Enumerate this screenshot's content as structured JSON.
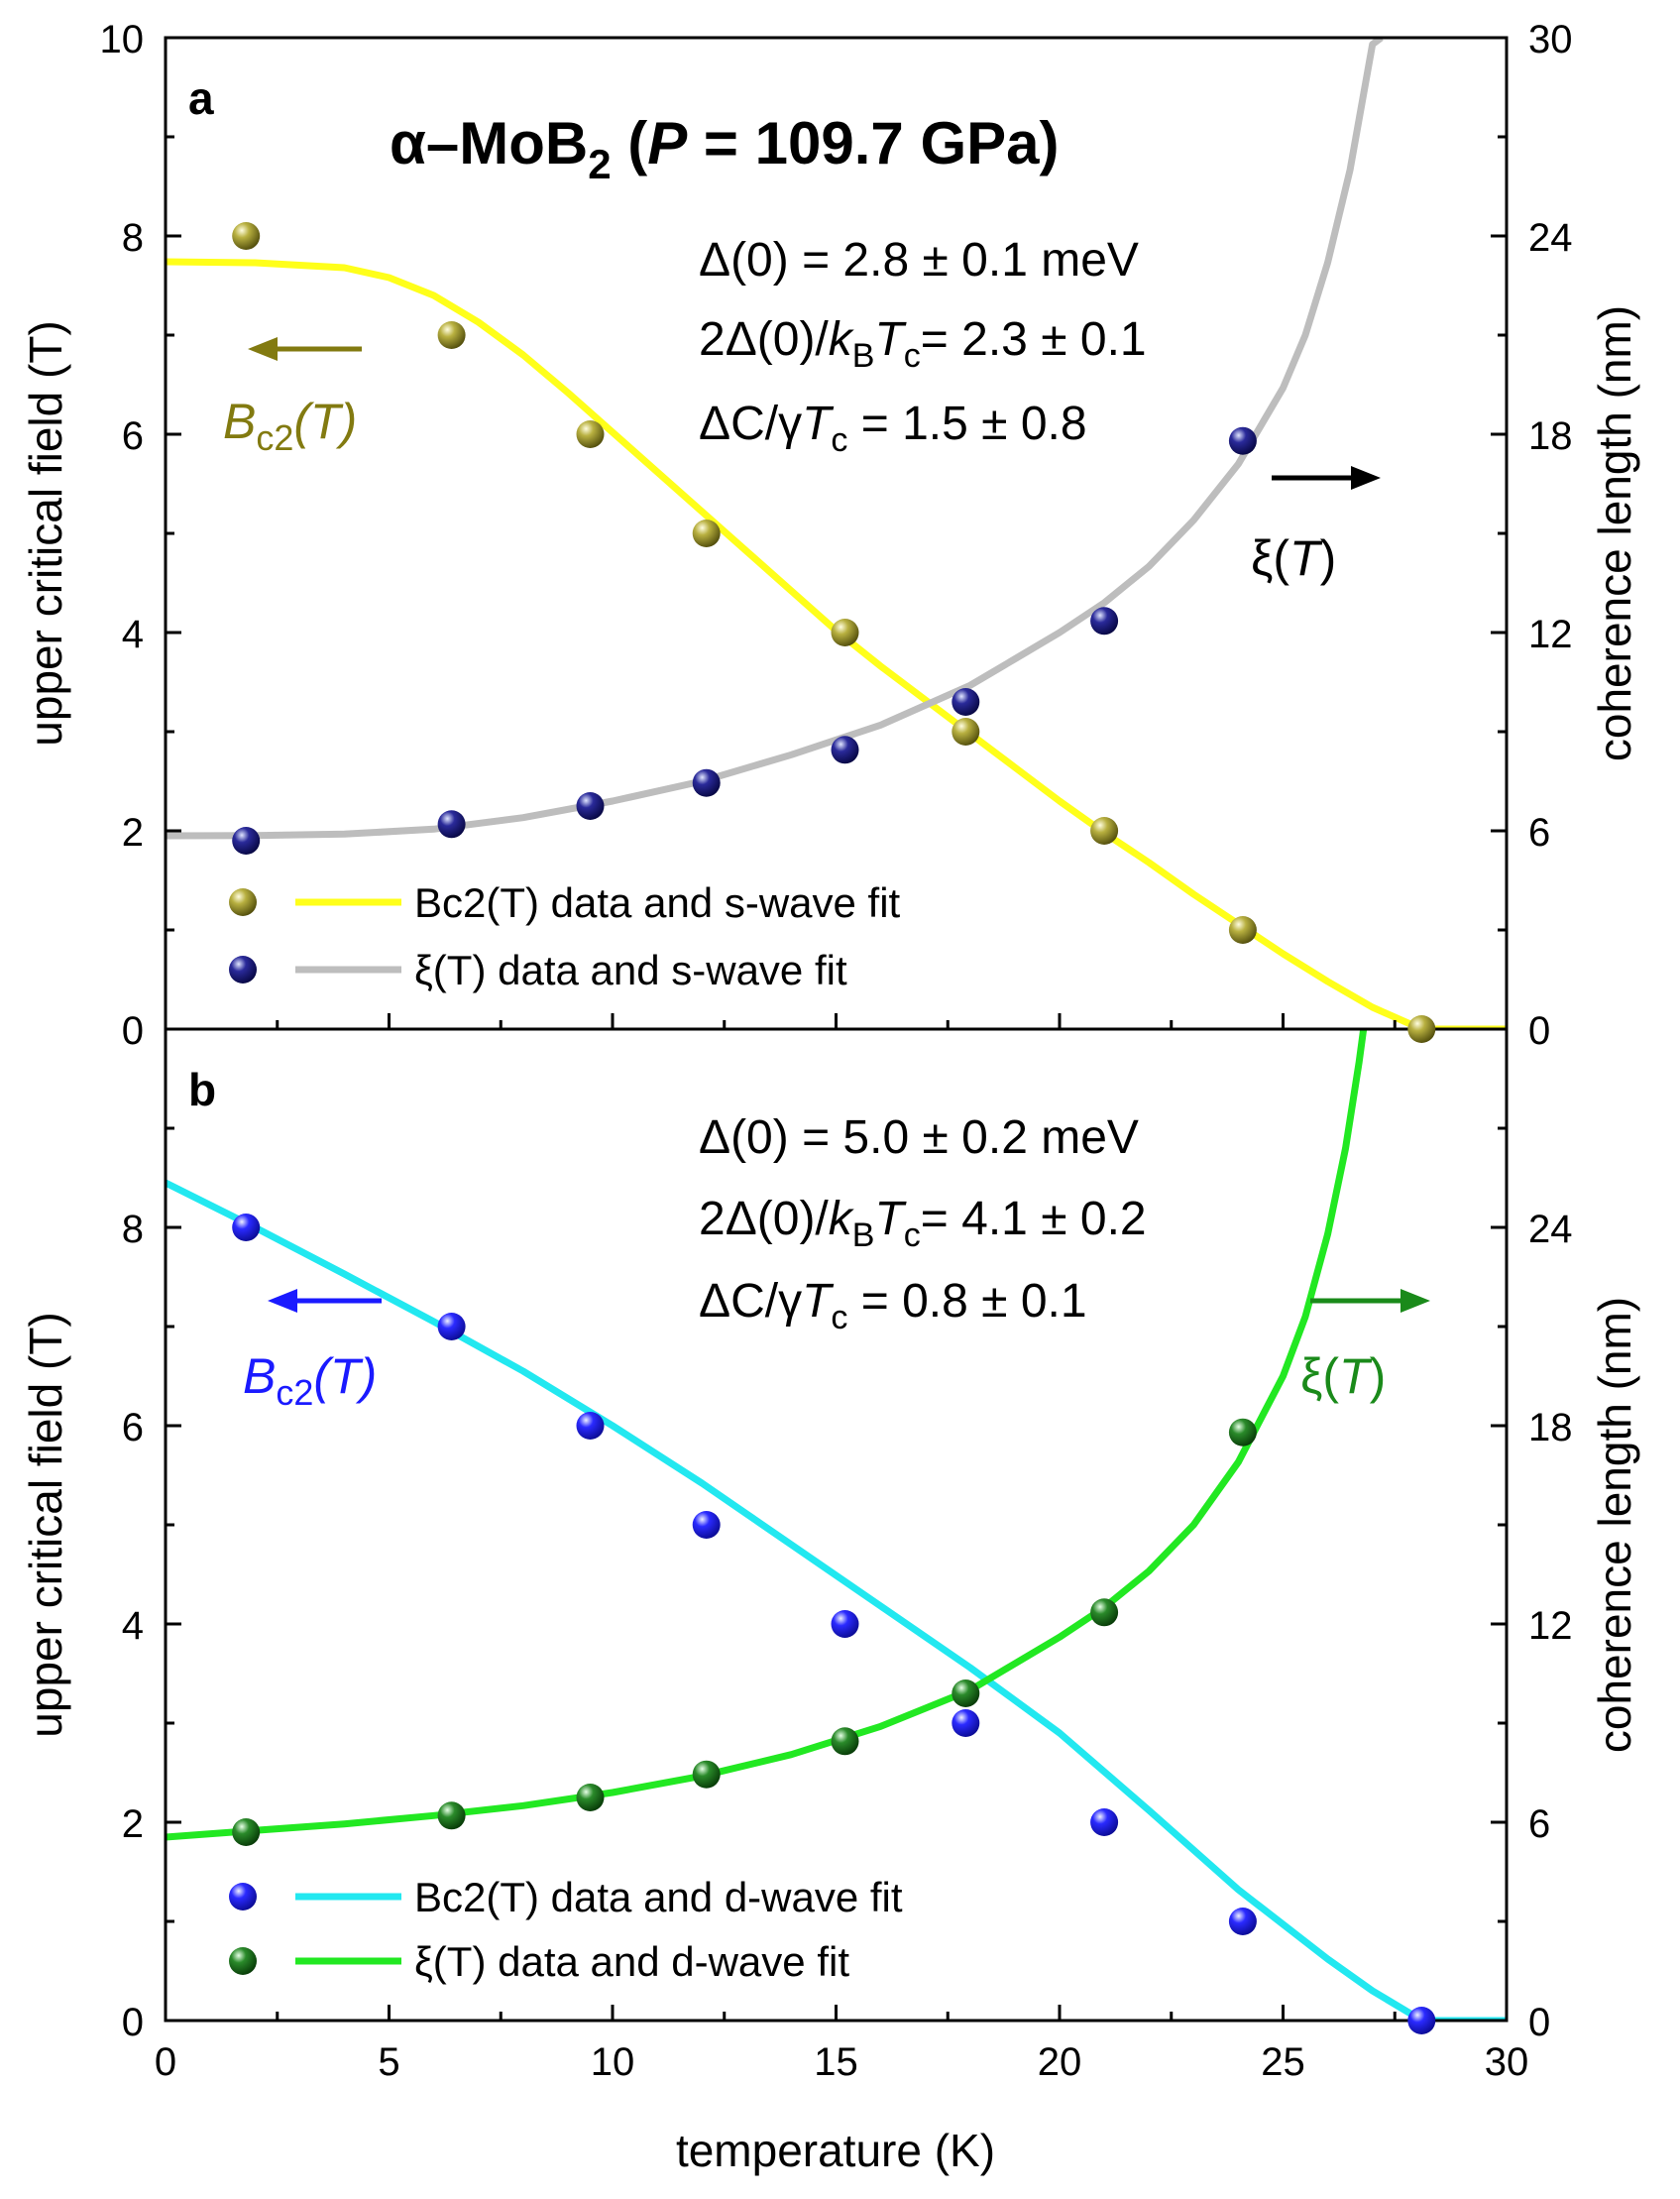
{
  "chart_data": [
    {
      "type": "scatter",
      "panel_label": "a",
      "title_parts": {
        "symbol": "α–MoB",
        "subscript": "2",
        "open": " (",
        "p": "P",
        "value": " = 109.7 GPa)"
      },
      "xlabel": "temperature (K)",
      "ylabel_left": "upper critical field (T)",
      "ylabel_right": "coherence length (nm)",
      "xlim": [
        0,
        30
      ],
      "ylim_left": [
        0,
        10
      ],
      "ylim_right": [
        0,
        30
      ],
      "yticks_left": [
        "0",
        "2",
        "4",
        "6",
        "8",
        "10"
      ],
      "yticks_right": [
        "0",
        "6",
        "12",
        "18",
        "24",
        "30"
      ],
      "annotations": {
        "gap": "Δ(0) = 2.8 ± 0.1 meV",
        "ratio_prefix": "2Δ(0)/",
        "ratio_suffix": "= 2.3 ± 0.1",
        "dc_prefix": "ΔC/γ",
        "dc_suffix": " = 1.5 ± 0.8",
        "bc2_arrow_label": "Bc2(T)",
        "xi_arrow_label": "ξ(T)"
      },
      "legend": [
        "Bc2(T) data and s-wave fit",
        "ξ(T) data and s-wave fit"
      ],
      "series": [
        {
          "name": "Bc2 data",
          "axis": "left",
          "color": "#8a8420",
          "x": [
            1.8,
            6.4,
            9.5,
            12.1,
            15.2,
            17.9,
            21.0,
            24.1,
            28.1
          ],
          "y": [
            8.0,
            7.0,
            6.0,
            5.0,
            4.0,
            3.0,
            2.0,
            1.0,
            0.0
          ]
        },
        {
          "name": "Bc2 s-wave fit",
          "axis": "left",
          "color": "#ffff1a",
          "x": [
            0,
            2,
            4,
            5,
            6,
            7,
            8,
            9,
            10,
            11,
            12,
            13,
            14,
            15,
            16,
            17,
            18,
            19,
            20,
            21,
            22,
            23,
            24,
            25,
            26,
            27,
            28,
            28.1,
            30
          ],
          "y": [
            7.74,
            7.73,
            7.68,
            7.58,
            7.4,
            7.13,
            6.8,
            6.42,
            6.02,
            5.62,
            5.22,
            4.82,
            4.42,
            4.02,
            3.66,
            3.32,
            2.98,
            2.64,
            2.3,
            1.98,
            1.68,
            1.36,
            1.06,
            0.76,
            0.48,
            0.22,
            0.02,
            0.0,
            0.0
          ]
        },
        {
          "name": "xi data",
          "axis": "right",
          "color": "#1a1a7a",
          "x": [
            1.8,
            6.4,
            9.5,
            12.1,
            15.2,
            17.9,
            21.0,
            24.1
          ],
          "y": [
            5.7,
            6.2,
            6.75,
            7.45,
            8.45,
            9.9,
            12.35,
            17.8
          ]
        },
        {
          "name": "xi s-wave fit",
          "axis": "right",
          "color": "#bdbdbd",
          "x": [
            0,
            2,
            4,
            6,
            8,
            10,
            12,
            14,
            16,
            18,
            19,
            20,
            21,
            22,
            23,
            24,
            25,
            25.5,
            26,
            26.5,
            27.0,
            27.2
          ],
          "y": [
            5.85,
            5.86,
            5.9,
            6.05,
            6.4,
            6.9,
            7.5,
            8.3,
            9.2,
            10.4,
            11.2,
            12.0,
            12.9,
            14.0,
            15.4,
            17.1,
            19.4,
            21.0,
            23.2,
            26.0,
            29.8,
            30.0
          ]
        }
      ]
    },
    {
      "type": "scatter",
      "panel_label": "b",
      "xlabel": "temperature (K)",
      "ylabel_left": "upper critical field (T)",
      "ylabel_right": "coherence length (nm)",
      "xlim": [
        0,
        30
      ],
      "xticks": [
        "0",
        "5",
        "10",
        "15",
        "20",
        "25",
        "30"
      ],
      "ylim_left": [
        0,
        10
      ],
      "ylim_right": [
        0,
        30
      ],
      "yticks_left": [
        "0",
        "2",
        "4",
        "6",
        "8"
      ],
      "yticks_right": [
        "0",
        "6",
        "12",
        "18",
        "24"
      ],
      "annotations": {
        "gap": "Δ(0) = 5.0 ± 0.2 meV",
        "ratio_prefix": "2Δ(0)/",
        "ratio_suffix": "= 4.1 ± 0.2",
        "dc_prefix": "ΔC/γ",
        "dc_suffix": " = 0.8 ± 0.1",
        "bc2_arrow_label": "Bc2(T)",
        "xi_arrow_label": "ξ(T)"
      },
      "legend": [
        "Bc2(T) data and d-wave fit",
        "ξ(T) data and d-wave fit"
      ],
      "series": [
        {
          "name": "Bc2 data",
          "axis": "left",
          "color": "#1a1aff",
          "x": [
            1.8,
            6.4,
            9.5,
            12.1,
            15.2,
            17.9,
            21.0,
            24.1,
            28.1
          ],
          "y": [
            8.0,
            7.0,
            6.0,
            5.0,
            4.0,
            3.0,
            2.0,
            1.0,
            0.0
          ]
        },
        {
          "name": "Bc2 d-wave fit",
          "axis": "left",
          "color": "#22e8f0",
          "x": [
            0,
            2,
            4,
            6,
            8,
            10,
            12,
            14,
            16,
            18,
            20,
            22,
            24,
            26,
            27,
            28,
            28.1,
            30
          ],
          "y": [
            8.45,
            8.0,
            7.53,
            7.05,
            6.55,
            6.0,
            5.42,
            4.8,
            4.18,
            3.56,
            2.9,
            2.12,
            1.32,
            0.62,
            0.3,
            0.03,
            0.0,
            0.0
          ]
        },
        {
          "name": "xi data",
          "axis": "right",
          "color": "#1a6e1a",
          "x": [
            1.8,
            6.4,
            9.5,
            12.1,
            15.2,
            17.9,
            21.0,
            24.1
          ],
          "y": [
            5.7,
            6.2,
            6.75,
            7.45,
            8.45,
            9.9,
            12.35,
            17.8
          ]
        },
        {
          "name": "xi d-wave fit",
          "axis": "right",
          "color": "#22e822",
          "x": [
            0,
            2,
            4,
            6,
            8,
            10,
            12,
            14,
            16,
            18,
            19,
            20,
            21,
            22,
            23,
            24,
            25,
            25.5,
            26,
            26.4,
            26.7,
            26.8
          ],
          "y": [
            5.55,
            5.75,
            5.95,
            6.2,
            6.5,
            6.9,
            7.4,
            8.05,
            8.9,
            10.0,
            10.8,
            11.6,
            12.5,
            13.6,
            15.0,
            16.9,
            19.5,
            21.3,
            23.8,
            26.4,
            29.0,
            30.0
          ]
        }
      ]
    }
  ],
  "symbols": {
    "kB_k": "k",
    "kB_B": "B",
    "T": "T",
    "c": "c"
  }
}
